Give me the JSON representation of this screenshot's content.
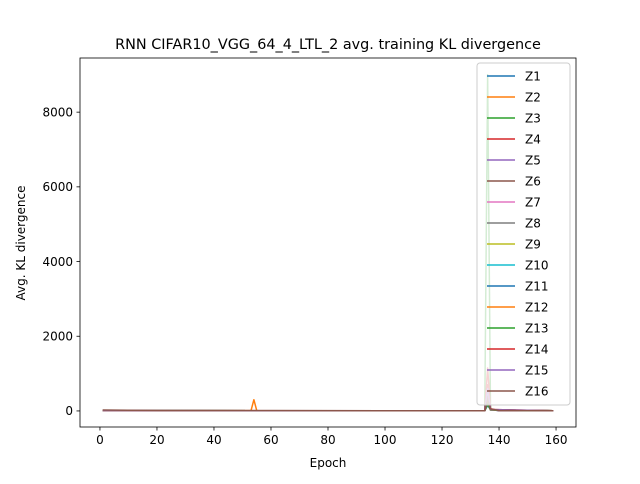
{
  "chart_data": {
    "type": "line",
    "title": "RNN CIFAR10_VGG_64_4_LTL_2 avg. training KL divergence",
    "xlabel": "Epoch",
    "ylabel": "Avg. KL divergence",
    "xlim": [
      -7,
      167
    ],
    "ylim": [
      -430,
      9450
    ],
    "xticks": [
      0,
      20,
      40,
      60,
      80,
      100,
      120,
      140,
      160
    ],
    "yticks": [
      0,
      2000,
      4000,
      6000,
      8000
    ],
    "grid": false,
    "legend_placement": "top-right",
    "series": [
      {
        "name": "Z1",
        "color": "#1f77b4",
        "points": [
          [
            1,
            15
          ],
          [
            20,
            8
          ],
          [
            60,
            6
          ],
          [
            100,
            6
          ],
          [
            135,
            5
          ],
          [
            136,
            150
          ],
          [
            137,
            40
          ],
          [
            140,
            10
          ],
          [
            159,
            5
          ]
        ]
      },
      {
        "name": "Z2",
        "color": "#ff7f0e",
        "points": [
          [
            1,
            12
          ],
          [
            20,
            8
          ],
          [
            53,
            10
          ],
          [
            54,
            300
          ],
          [
            55,
            10
          ],
          [
            100,
            6
          ],
          [
            135,
            5
          ],
          [
            136,
            200
          ],
          [
            137,
            30
          ],
          [
            159,
            5
          ]
        ]
      },
      {
        "name": "Z3",
        "color": "#2ca02c",
        "points": [
          [
            1,
            10
          ],
          [
            20,
            8
          ],
          [
            60,
            6
          ],
          [
            100,
            6
          ],
          [
            135,
            5
          ],
          [
            136,
            9000
          ],
          [
            137,
            50
          ],
          [
            140,
            10
          ],
          [
            159,
            5
          ]
        ]
      },
      {
        "name": "Z4",
        "color": "#d62728",
        "points": [
          [
            1,
            20
          ],
          [
            20,
            8
          ],
          [
            60,
            6
          ],
          [
            100,
            6
          ],
          [
            135,
            5
          ],
          [
            136,
            1150
          ],
          [
            137,
            60
          ],
          [
            140,
            12
          ],
          [
            159,
            5
          ]
        ]
      },
      {
        "name": "Z5",
        "color": "#9467bd",
        "points": [
          [
            1,
            14
          ],
          [
            20,
            8
          ],
          [
            60,
            6
          ],
          [
            100,
            6
          ],
          [
            135,
            5
          ],
          [
            136,
            700
          ],
          [
            137,
            40
          ],
          [
            140,
            10
          ],
          [
            159,
            5
          ]
        ]
      },
      {
        "name": "Z6",
        "color": "#8c564b",
        "points": [
          [
            1,
            18
          ],
          [
            20,
            9
          ],
          [
            60,
            7
          ],
          [
            100,
            6
          ],
          [
            135,
            5
          ],
          [
            136,
            400
          ],
          [
            137,
            40
          ],
          [
            140,
            10
          ],
          [
            159,
            5
          ]
        ]
      },
      {
        "name": "Z7",
        "color": "#e377c2",
        "points": [
          [
            1,
            12
          ],
          [
            20,
            8
          ],
          [
            60,
            6
          ],
          [
            100,
            6
          ],
          [
            135,
            5
          ],
          [
            136,
            250
          ],
          [
            137,
            30
          ],
          [
            159,
            5
          ]
        ]
      },
      {
        "name": "Z8",
        "color": "#7f7f7f",
        "points": [
          [
            1,
            12
          ],
          [
            20,
            8
          ],
          [
            60,
            6
          ],
          [
            100,
            6
          ],
          [
            135,
            5
          ],
          [
            136,
            300
          ],
          [
            137,
            30
          ],
          [
            159,
            5
          ]
        ]
      },
      {
        "name": "Z9",
        "color": "#bcbd22",
        "points": [
          [
            1,
            12
          ],
          [
            20,
            8
          ],
          [
            60,
            6
          ],
          [
            100,
            6
          ],
          [
            135,
            5
          ],
          [
            136,
            200
          ],
          [
            137,
            30
          ],
          [
            159,
            5
          ]
        ]
      },
      {
        "name": "Z10",
        "color": "#17becf",
        "points": [
          [
            1,
            12
          ],
          [
            20,
            8
          ],
          [
            60,
            6
          ],
          [
            100,
            6
          ],
          [
            135,
            5
          ],
          [
            136,
            200
          ],
          [
            137,
            30
          ],
          [
            159,
            5
          ]
        ]
      },
      {
        "name": "Z11",
        "color": "#1f77b4",
        "points": [
          [
            1,
            12
          ],
          [
            20,
            8
          ],
          [
            60,
            6
          ],
          [
            100,
            6
          ],
          [
            135,
            5
          ],
          [
            136,
            200
          ],
          [
            137,
            30
          ],
          [
            159,
            5
          ]
        ]
      },
      {
        "name": "Z12",
        "color": "#ff7f0e",
        "points": [
          [
            1,
            12
          ],
          [
            20,
            8
          ],
          [
            60,
            6
          ],
          [
            100,
            6
          ],
          [
            135,
            5
          ],
          [
            136,
            200
          ],
          [
            137,
            30
          ],
          [
            159,
            5
          ]
        ]
      },
      {
        "name": "Z13",
        "color": "#2ca02c",
        "points": [
          [
            1,
            12
          ],
          [
            20,
            8
          ],
          [
            60,
            6
          ],
          [
            100,
            6
          ],
          [
            135,
            5
          ],
          [
            136,
            200
          ],
          [
            137,
            30
          ],
          [
            159,
            5
          ]
        ]
      },
      {
        "name": "Z14",
        "color": "#d62728",
        "points": [
          [
            1,
            12
          ],
          [
            20,
            8
          ],
          [
            60,
            6
          ],
          [
            100,
            6
          ],
          [
            135,
            5
          ],
          [
            136,
            700
          ],
          [
            137,
            40
          ],
          [
            159,
            5
          ]
        ]
      },
      {
        "name": "Z15",
        "color": "#9467bd",
        "points": [
          [
            1,
            12
          ],
          [
            20,
            8
          ],
          [
            60,
            6
          ],
          [
            100,
            6
          ],
          [
            135,
            5
          ],
          [
            136,
            600
          ],
          [
            137,
            40
          ],
          [
            159,
            5
          ]
        ]
      },
      {
        "name": "Z16",
        "color": "#8c564b",
        "points": [
          [
            1,
            25
          ],
          [
            20,
            10
          ],
          [
            60,
            7
          ],
          [
            100,
            6
          ],
          [
            135,
            5
          ],
          [
            136,
            300
          ],
          [
            137,
            50
          ],
          [
            140,
            15
          ],
          [
            159,
            5
          ]
        ]
      }
    ]
  }
}
